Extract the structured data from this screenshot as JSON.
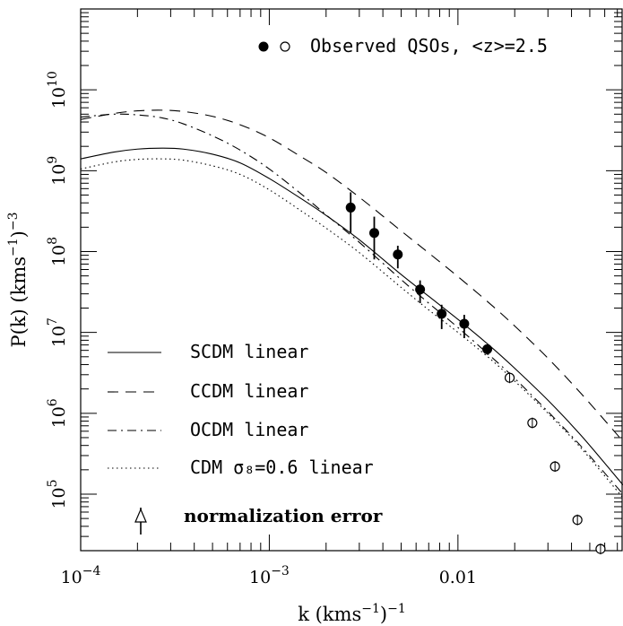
{
  "chart_data": {
    "type": "scatter",
    "title": "",
    "xlabel": "k (kms⁻¹)⁻¹",
    "ylabel": "P(k) (kms⁻¹)⁻³",
    "x_scale": "log",
    "y_scale": "log",
    "xlim": [
      0.0001,
      0.075
    ],
    "ylim": [
      20000,
      100000000000.0
    ],
    "grid": false,
    "x_ticks": [
      {
        "value": 0.0001,
        "label": "10",
        "exp": "−4"
      },
      {
        "value": 0.001,
        "label": "10",
        "exp": "−3"
      },
      {
        "value": 0.01,
        "label": "0.01",
        "exp": ""
      }
    ],
    "y_ticks": [
      {
        "value": 100000,
        "label": "10",
        "exp": "5"
      },
      {
        "value": 1000000,
        "label": "10",
        "exp": "6"
      },
      {
        "value": 10000000,
        "label": "10",
        "exp": "7"
      },
      {
        "value": 100000000,
        "label": "10",
        "exp": "8"
      },
      {
        "value": 1000000000,
        "label": "10",
        "exp": "9"
      },
      {
        "value": 10000000000,
        "label": "10",
        "exp": "10"
      }
    ],
    "legend_top": {
      "text": "Observed QSOs, <z>=2.5"
    },
    "series": [
      {
        "name": "SCDM linear",
        "style": "solid",
        "x": [
          0.0001,
          0.00015,
          0.0002,
          0.00027,
          0.00035,
          0.0005,
          0.0007,
          0.001,
          0.0015,
          0.002,
          0.003,
          0.005,
          0.007,
          0.01,
          0.015,
          0.02,
          0.03,
          0.045,
          0.075
        ],
        "y": [
          1400000000.0,
          1700000000.0,
          1850000000.0,
          1900000000.0,
          1850000000.0,
          1600000000.0,
          1250000000.0,
          800000000.0,
          440000000.0,
          280000000.0,
          140000000.0,
          52000000.0,
          28000000.0,
          14500000.0,
          6600000.0,
          3600000.0,
          1450000.0,
          530000.0,
          130000.0
        ]
      },
      {
        "name": "CCDM linear",
        "style": "dashed",
        "x": [
          0.0001,
          0.00015,
          0.0002,
          0.00027,
          0.00035,
          0.0005,
          0.0007,
          0.001,
          0.0015,
          0.002,
          0.003,
          0.005,
          0.007,
          0.01,
          0.015,
          0.02,
          0.03,
          0.045,
          0.075
        ],
        "y": [
          4300000000.0,
          5100000000.0,
          5500000000.0,
          5600000000.0,
          5400000000.0,
          4700000000.0,
          3700000000.0,
          2550000000.0,
          1450000000.0,
          950000000.0,
          470000000.0,
          180000000.0,
          96000000.0,
          49000000.0,
          22000000.0,
          12000000.0,
          4800000.0,
          1750000.0,
          450000.0
        ]
      },
      {
        "name": "OCDM linear",
        "style": "dashdot",
        "x": [
          0.0001,
          0.00015,
          0.0002,
          0.00027,
          0.00035,
          0.0005,
          0.0007,
          0.001,
          0.0015,
          0.002,
          0.003,
          0.005,
          0.007,
          0.01,
          0.015,
          0.02,
          0.03,
          0.045,
          0.075
        ],
        "y": [
          4600000000.0,
          5000000000.0,
          4900000000.0,
          4500000000.0,
          3800000000.0,
          2700000000.0,
          1800000000.0,
          1050000000.0,
          500000000.0,
          285000000.0,
          130000000.0,
          45000000.0,
          23000000.0,
          11500000.0,
          5000000.0,
          2700000.0,
          1050000.0,
          390000.0,
          100000.0
        ]
      },
      {
        "name": "CDM σ₈=0.6 linear",
        "style": "dotted",
        "x": [
          0.0001,
          0.00015,
          0.0002,
          0.00027,
          0.00035,
          0.0005,
          0.0007,
          0.001,
          0.0015,
          0.002,
          0.003,
          0.005,
          0.007,
          0.01,
          0.015,
          0.02,
          0.03,
          0.045,
          0.075
        ],
        "y": [
          1050000000.0,
          1280000000.0,
          1380000000.0,
          1400000000.0,
          1350000000.0,
          1150000000.0,
          900000000.0,
          580000000.0,
          310000000.0,
          195000000.0,
          97000000.0,
          36000000.0,
          19000000.0,
          10000000.0,
          4600000.0,
          2500000.0,
          1000000.0,
          370000.0,
          90000.0
        ]
      }
    ],
    "observed_filled": [
      {
        "x": 0.0027,
        "y": 350000000.0,
        "err_lo": 170000000.0,
        "err_hi": 540000000.0
      },
      {
        "x": 0.0036,
        "y": 170000000.0,
        "err_lo": 80000000.0,
        "err_hi": 270000000.0
      },
      {
        "x": 0.0048,
        "y": 92000000.0,
        "err_lo": 62000000.0,
        "err_hi": 118000000.0
      },
      {
        "x": 0.0063,
        "y": 34000000.0,
        "err_lo": 23000000.0,
        "err_hi": 44000000.0
      },
      {
        "x": 0.0082,
        "y": 17000000.0,
        "err_lo": 11000000.0,
        "err_hi": 22000000.0
      },
      {
        "x": 0.0108,
        "y": 12800000.0,
        "err_lo": 8500000.0,
        "err_hi": 16500000.0
      },
      {
        "x": 0.0143,
        "y": 6200000.0,
        "err_lo": 5300000.0,
        "err_hi": 6600000.0
      }
    ],
    "observed_open": [
      {
        "x": 0.0188,
        "y": 2750000.0
      },
      {
        "x": 0.0248,
        "y": 760000.0
      },
      {
        "x": 0.0327,
        "y": 220000.0
      },
      {
        "x": 0.043,
        "y": 48000.0
      },
      {
        "x": 0.057,
        "y": 21000.0
      }
    ],
    "normalization_error": {
      "label": "normalization error"
    }
  }
}
